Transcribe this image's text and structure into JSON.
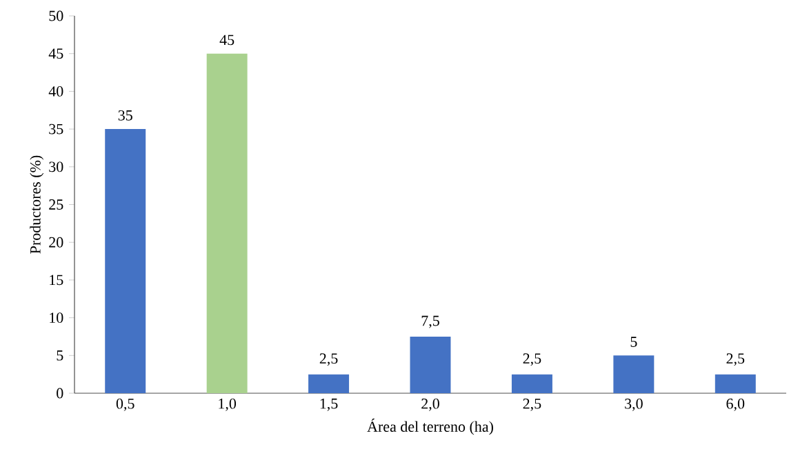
{
  "chart_data": {
    "type": "bar",
    "xlabel": "Área del terreno (ha)",
    "ylabel": "Productores (%)",
    "categories": [
      "0,5",
      "1,0",
      "1,5",
      "2,0",
      "2,5",
      "3,0",
      "6,0"
    ],
    "values": [
      35,
      45,
      2.5,
      7.5,
      2.5,
      5,
      2.5
    ],
    "colors": [
      "#4472c4",
      "#a9d18e",
      "#4472c4",
      "#4472c4",
      "#4472c4",
      "#4472c4",
      "#4472c4"
    ],
    "value_labels": [
      "35",
      "45",
      "2,5",
      "7,5",
      "2,5",
      "5",
      "2,5"
    ],
    "ylim": [
      0,
      50
    ],
    "yticks": [
      0,
      5,
      10,
      15,
      20,
      25,
      30,
      35,
      40,
      45,
      50
    ],
    "grid": false
  }
}
